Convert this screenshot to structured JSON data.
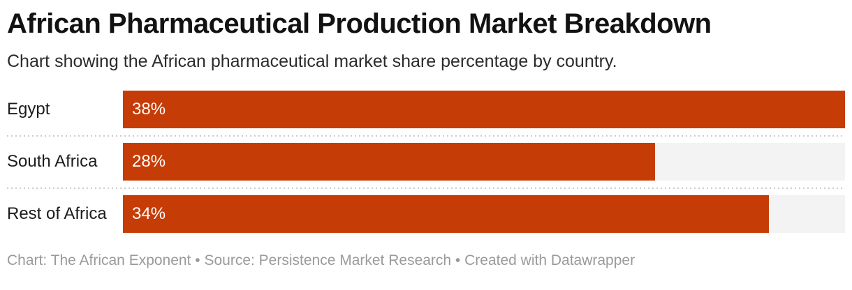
{
  "header": {
    "title": "African Pharmaceutical Production Market Breakdown",
    "subtitle": "Chart showing the African pharmaceutical market share percentage by country."
  },
  "footer": {
    "credit": "Chart: The African Exponent • Source: Persistence Market Research • Created with Datawrapper"
  },
  "colors": {
    "bar": "#C63C06",
    "track": "#F3F3F3",
    "separator": "#CBCBCB",
    "title_text": "#121212",
    "label_text": "#1C1C1C",
    "value_text": "#FFFFFF",
    "footer_text": "#9A9A9A"
  },
  "chart_data": {
    "type": "bar",
    "orientation": "horizontal",
    "title": "African Pharmaceutical Production Market Breakdown",
    "subtitle": "Chart showing the African pharmaceutical market share percentage by country.",
    "categories": [
      "Egypt",
      "South Africa",
      "Rest of Africa"
    ],
    "values": [
      38,
      28,
      34
    ],
    "value_labels": [
      "38%",
      "28%",
      "34%"
    ],
    "unit": "%",
    "xlim": [
      0,
      38
    ],
    "grid": false,
    "legend": false,
    "value_label_position": "inside-left",
    "bar_scaling": "relative-to-max"
  }
}
